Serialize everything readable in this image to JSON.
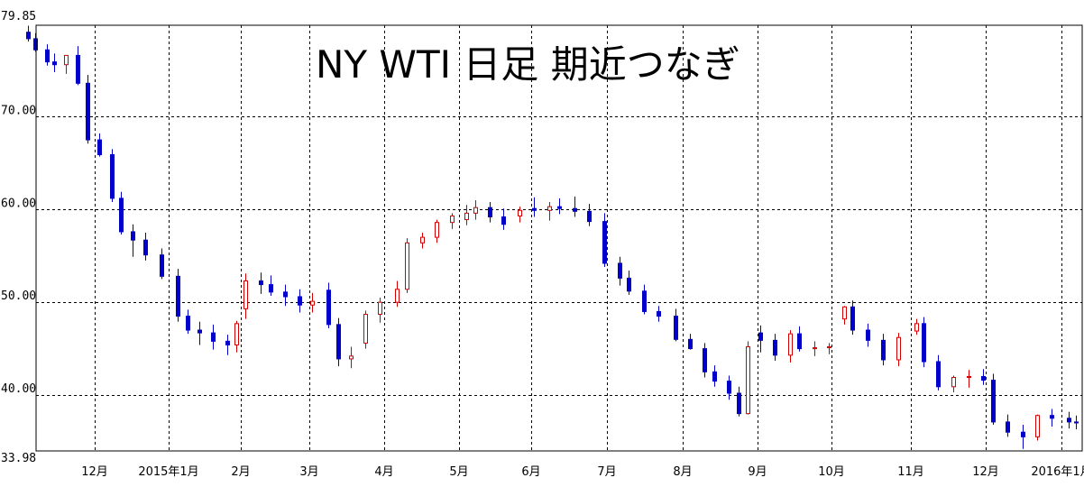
{
  "chart_data": {
    "type": "candlestick",
    "title": "NY WTI 日足  期近つなぎ",
    "xlabel": "",
    "ylabel": "",
    "ylim": [
      33.98,
      79.85
    ],
    "y_labels": [
      "79.85",
      "70.00",
      "60.00",
      "50.00",
      "40.00",
      "33.98"
    ],
    "y_gridlines": [
      70,
      60,
      50,
      40
    ],
    "x_labels": [
      "12月",
      "2015年1月",
      "2月",
      "3月",
      "4月",
      "5月",
      "6月",
      "7月",
      "8月",
      "9月",
      "10月",
      "11月",
      "12月",
      "2016年1月"
    ],
    "grid": true,
    "up_color": "#d40000",
    "down_color": "#0000c8",
    "series": [
      {
        "x": [
          "2014-11-03",
          "2014-11-06",
          "2014-11-11",
          "2014-11-14",
          "2014-11-19",
          "2014-11-24",
          "2014-11-28",
          "2014-12-03",
          "2014-12-08",
          "2014-12-12",
          "2014-12-17",
          "2014-12-22",
          "2014-12-29",
          "2015-01-05",
          "2015-01-09",
          "2015-01-14",
          "2015-01-20",
          "2015-01-26",
          "2015-01-30",
          "2015-02-03",
          "2015-02-09",
          "2015-02-13",
          "2015-02-19",
          "2015-02-25",
          "2015-03-02",
          "2015-03-09",
          "2015-03-13",
          "2015-03-18",
          "2015-03-24",
          "2015-03-30",
          "2015-04-06",
          "2015-04-10",
          "2015-04-16",
          "2015-04-22",
          "2015-04-28",
          "2015-05-04",
          "2015-05-08",
          "2015-05-14",
          "2015-05-20",
          "2015-05-27",
          "2015-06-02",
          "2015-06-08",
          "2015-06-12",
          "2015-06-18",
          "2015-06-24",
          "2015-06-30",
          "2015-07-06",
          "2015-07-10",
          "2015-07-16",
          "2015-07-22",
          "2015-07-29",
          "2015-08-04",
          "2015-08-10",
          "2015-08-14",
          "2015-08-20",
          "2015-08-24",
          "2015-08-28",
          "2015-09-02",
          "2015-09-08",
          "2015-09-14",
          "2015-09-18",
          "2015-09-24",
          "2015-09-30",
          "2015-10-06",
          "2015-10-09",
          "2015-10-15",
          "2015-10-21",
          "2015-10-27",
          "2015-11-03",
          "2015-11-06",
          "2015-11-12",
          "2015-11-18",
          "2015-11-24",
          "2015-11-30",
          "2015-12-04",
          "2015-12-10",
          "2015-12-16",
          "2015-12-22",
          "2015-12-28",
          "2016-01-04",
          "2016-01-07"
        ],
        "open": [
          79.1,
          78.4,
          77.2,
          75.9,
          75.6,
          76.6,
          73.6,
          67.5,
          65.9,
          61.2,
          57.6,
          56.7,
          55.1,
          52.8,
          48.5,
          47.0,
          46.7,
          45.8,
          45.4,
          49.3,
          52.3,
          51.9,
          51.1,
          50.6,
          49.7,
          51.3,
          47.6,
          43.9,
          45.6,
          48.7,
          50.0,
          51.4,
          56.4,
          57.0,
          58.6,
          58.9,
          59.6,
          60.2,
          59.2,
          59.3,
          60.1,
          59.9,
          60.3,
          60.1,
          59.8,
          58.7,
          54.2,
          52.6,
          51.2,
          49.0,
          48.5,
          46.0,
          45.0,
          42.5,
          41.5,
          40.2,
          38.0,
          46.7,
          45.9,
          44.3,
          46.6,
          45.0,
          45.1,
          48.2,
          49.5,
          47.0,
          45.9,
          43.8,
          46.9,
          47.7,
          43.6,
          40.9,
          41.9,
          42.0,
          41.6,
          37.1,
          36.0,
          35.5,
          37.8,
          37.5,
          37.1
        ],
        "high": [
          79.8,
          79.0,
          77.8,
          76.8,
          76.2,
          77.6,
          74.5,
          68.2,
          66.5,
          61.9,
          58.4,
          57.5,
          55.8,
          53.6,
          49.2,
          47.9,
          47.6,
          46.5,
          48.0,
          53.1,
          53.2,
          52.9,
          51.9,
          51.4,
          51.0,
          52.1,
          48.3,
          45.2,
          49.1,
          50.5,
          52.3,
          56.9,
          57.5,
          58.9,
          59.6,
          60.5,
          61.0,
          60.8,
          60.1,
          60.3,
          61.3,
          60.8,
          61.2,
          61.4,
          60.6,
          59.6,
          54.9,
          53.4,
          51.9,
          49.6,
          49.3,
          46.6,
          45.6,
          43.2,
          42.1,
          40.9,
          45.8,
          47.5,
          46.6,
          47.0,
          47.4,
          45.8,
          45.6,
          49.6,
          50.2,
          47.7,
          46.6,
          46.7,
          48.2,
          48.4,
          44.3,
          42.1,
          42.7,
          42.8,
          42.3,
          37.9,
          36.8,
          37.9,
          38.5,
          38.2,
          37.8
        ],
        "low": [
          78.1,
          77.0,
          75.5,
          74.8,
          74.6,
          73.4,
          67.1,
          65.7,
          60.8,
          57.3,
          54.9,
          54.5,
          52.5,
          47.9,
          46.6,
          45.4,
          44.9,
          44.3,
          44.6,
          48.2,
          50.9,
          50.7,
          49.6,
          48.9,
          48.9,
          47.2,
          43.1,
          42.9,
          45.0,
          47.8,
          49.5,
          51.0,
          55.8,
          56.4,
          57.9,
          58.3,
          58.9,
          58.6,
          57.8,
          58.6,
          59.2,
          58.8,
          59.5,
          59.2,
          58.2,
          53.8,
          51.8,
          50.8,
          48.7,
          47.9,
          45.8,
          44.9,
          41.9,
          40.9,
          39.5,
          37.7,
          37.9,
          44.6,
          43.7,
          43.5,
          44.7,
          44.2,
          44.4,
          47.6,
          46.5,
          45.2,
          43.2,
          43.1,
          46.5,
          43.0,
          40.5,
          40.3,
          40.8,
          41.1,
          36.8,
          35.5,
          34.2,
          35.1,
          36.6,
          36.4,
          36.3
        ],
        "close": [
          78.4,
          77.2,
          75.9,
          75.6,
          76.6,
          73.6,
          67.5,
          65.9,
          61.2,
          57.6,
          56.7,
          55.1,
          52.8,
          48.5,
          47.0,
          46.7,
          45.8,
          45.4,
          47.7,
          52.3,
          51.9,
          51.1,
          50.6,
          49.7,
          50.1,
          47.6,
          43.9,
          44.2,
          48.7,
          50.0,
          51.4,
          56.4,
          57.0,
          58.6,
          59.3,
          59.6,
          60.2,
          59.2,
          58.4,
          59.9,
          59.9,
          60.3,
          60.1,
          59.8,
          58.7,
          54.2,
          52.6,
          51.2,
          49.0,
          48.5,
          46.0,
          45.0,
          42.5,
          41.5,
          40.2,
          38.0,
          45.2,
          45.9,
          44.3,
          46.6,
          45.0,
          45.1,
          45.2,
          49.5,
          47.0,
          45.9,
          43.8,
          46.2,
          47.7,
          43.6,
          40.9,
          41.9,
          42.0,
          41.6,
          37.1,
          36.0,
          35.5,
          37.8,
          37.5,
          37.1,
          37.0
        ]
      }
    ]
  }
}
